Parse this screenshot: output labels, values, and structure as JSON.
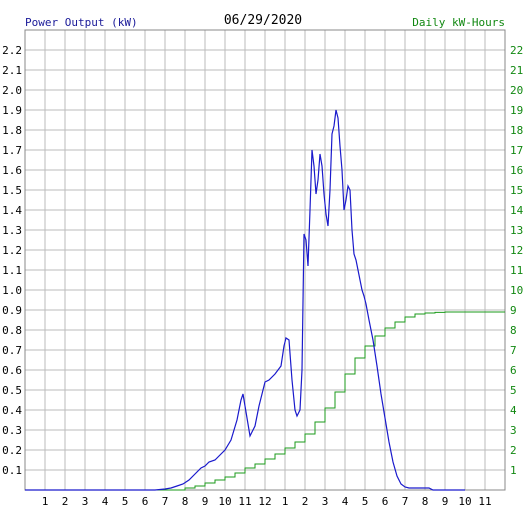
{
  "chart_data": {
    "type": "line",
    "title": "06/29/2020",
    "left_axis_label": "Power Output (kW)",
    "right_axis_label": "Daily kW-Hours",
    "x_ticks": [
      "1",
      "2",
      "3",
      "4",
      "5",
      "6",
      "7",
      "8",
      "9",
      "10",
      "11",
      "12",
      "1",
      "2",
      "3",
      "4",
      "5",
      "6",
      "7",
      "8",
      "9",
      "10",
      "11"
    ],
    "x_range_hours": [
      0,
      24
    ],
    "left_ticks": [
      "0.1",
      "0.2",
      "0.3",
      "0.4",
      "0.5",
      "0.6",
      "0.7",
      "0.8",
      "0.9",
      "1.0",
      "1.1",
      "1.2",
      "1.3",
      "1.4",
      "1.5",
      "1.6",
      "1.7",
      "1.8",
      "1.9",
      "2.0",
      "2.1",
      "2.2"
    ],
    "right_ticks": [
      "1",
      "2",
      "3",
      "4",
      "5",
      "6",
      "7",
      "8",
      "9",
      "10",
      "11",
      "12",
      "13",
      "14",
      "15",
      "16",
      "17",
      "18",
      "19",
      "20",
      "21",
      "22"
    ],
    "ylim_left": [
      0,
      2.3
    ],
    "ylim_right": [
      0,
      23
    ],
    "grid": true,
    "colors": {
      "power": "#1a1acc",
      "energy": "#1a9a1a",
      "grid": "#bbbbbb",
      "axis_left": "#1a1a99",
      "axis_right": "#118811",
      "title": "#000000"
    },
    "series": [
      {
        "axis": "left",
        "x": [
          0,
          6.0,
          6.5,
          7.0,
          7.3,
          7.6,
          7.9,
          8.2,
          8.5,
          8.8,
          9.0,
          9.2,
          9.5,
          9.8,
          10.0,
          10.3,
          10.6,
          10.8,
          10.9,
          11.0,
          11.1,
          11.25,
          11.4,
          11.5,
          11.7,
          11.9,
          12.0,
          12.2,
          12.5,
          12.8,
          12.95,
          13.05,
          13.2,
          13.35,
          13.5,
          13.6,
          13.75,
          13.85,
          13.95,
          14.05,
          14.15,
          14.25,
          14.35,
          14.45,
          14.55,
          14.65,
          14.75,
          14.85,
          14.95,
          15.05,
          15.15,
          15.25,
          15.35,
          15.45,
          15.55,
          15.65,
          15.75,
          15.85,
          15.95,
          16.05,
          16.15,
          16.25,
          16.35,
          16.45,
          16.55,
          16.65,
          16.75,
          16.85,
          16.95,
          17.05,
          17.2,
          17.4,
          17.6,
          17.8,
          18.0,
          18.2,
          18.4,
          18.6,
          18.8,
          19.0,
          19.2,
          19.4,
          19.6,
          19.8,
          20.0,
          20.2,
          20.4,
          20.6,
          20.8,
          21.0,
          21.5,
          22.0
        ],
        "y": [
          0,
          0,
          0,
          0.005,
          0.01,
          0.02,
          0.03,
          0.05,
          0.08,
          0.11,
          0.12,
          0.14,
          0.15,
          0.18,
          0.2,
          0.25,
          0.35,
          0.45,
          0.48,
          0.42,
          0.36,
          0.27,
          0.3,
          0.32,
          0.42,
          0.5,
          0.54,
          0.55,
          0.58,
          0.62,
          0.72,
          0.76,
          0.75,
          0.55,
          0.4,
          0.37,
          0.4,
          0.6,
          1.28,
          1.25,
          1.12,
          1.4,
          1.7,
          1.62,
          1.48,
          1.55,
          1.68,
          1.62,
          1.48,
          1.38,
          1.32,
          1.5,
          1.78,
          1.82,
          1.9,
          1.86,
          1.72,
          1.6,
          1.4,
          1.45,
          1.52,
          1.5,
          1.3,
          1.18,
          1.15,
          1.1,
          1.05,
          1.0,
          0.97,
          0.93,
          0.85,
          0.75,
          0.62,
          0.48,
          0.36,
          0.24,
          0.14,
          0.07,
          0.03,
          0.015,
          0.01,
          0.01,
          0.01,
          0.01,
          0.01,
          0.01,
          0,
          0,
          0,
          0,
          0,
          0
        ]
      },
      {
        "axis": "right",
        "x": [
          0,
          7.5,
          8.0,
          8.5,
          9.0,
          9.5,
          10.0,
          10.5,
          11.0,
          11.5,
          12.0,
          12.5,
          13.0,
          13.5,
          14.0,
          14.5,
          15.0,
          15.5,
          16.0,
          16.5,
          17.0,
          17.5,
          18.0,
          18.5,
          19.0,
          19.5,
          20.0,
          20.5,
          21.0,
          22.0,
          23.0,
          24.0
        ],
        "y": [
          0,
          0,
          0.1,
          0.2,
          0.35,
          0.5,
          0.65,
          0.85,
          1.1,
          1.3,
          1.55,
          1.8,
          2.1,
          2.4,
          2.8,
          3.4,
          4.1,
          4.9,
          5.8,
          6.6,
          7.2,
          7.7,
          8.1,
          8.4,
          8.65,
          8.8,
          8.85,
          8.88,
          8.9,
          8.9,
          8.9,
          8.9
        ]
      }
    ]
  }
}
